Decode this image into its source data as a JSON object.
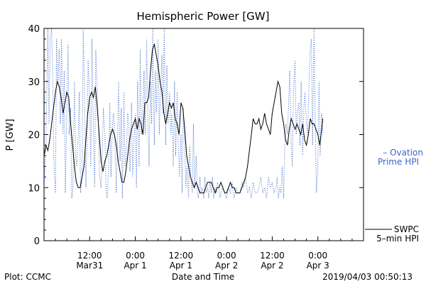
{
  "chart_data": {
    "type": "line",
    "title": "Hemispheric Power [GW]",
    "ylabel": "P [GW]",
    "xlabel": "Date and Time",
    "ylim": [
      0,
      40
    ],
    "yticks": [
      0,
      10,
      20,
      30,
      40
    ],
    "xlim_hours": [
      0,
      84
    ],
    "xticks": [
      {
        "hour": 12,
        "line1": "12:00",
        "line2": "Mar31"
      },
      {
        "hour": 24,
        "line1": "0:00",
        "line2": "Apr 1"
      },
      {
        "hour": 36,
        "line1": "12:00",
        "line2": "Apr 1"
      },
      {
        "hour": 48,
        "line1": "0:00",
        "line2": "Apr 2"
      },
      {
        "hour": 60,
        "line1": "12:00",
        "line2": "Apr 2"
      },
      {
        "hour": 72,
        "line1": "0:00",
        "line2": "Apr 3"
      }
    ],
    "series": [
      {
        "name": "Ovation Prime HPI",
        "legend_lines": [
          "– Ovation",
          "Prime HPI"
        ],
        "color": "#3a66c9",
        "style": "dotted",
        "x": [
          0,
          0.5,
          1,
          1.3,
          1.6,
          2,
          2.3,
          2.6,
          3,
          3.3,
          3.6,
          4,
          4.3,
          4.6,
          5,
          5.3,
          5.6,
          6,
          6.3,
          6.6,
          7,
          7.3,
          7.6,
          8,
          8.3,
          8.6,
          9,
          9.3,
          9.6,
          10,
          10.3,
          10.6,
          11,
          11.3,
          11.6,
          12,
          12.3,
          12.6,
          13,
          13.3,
          13.6,
          14,
          14.3,
          14.6,
          15,
          15.3,
          15.6,
          16,
          16.3,
          16.6,
          17,
          17.3,
          17.6,
          18,
          18.3,
          18.6,
          19,
          19.3,
          19.6,
          20,
          20.3,
          20.6,
          21,
          21.3,
          21.6,
          22,
          22.3,
          22.6,
          23,
          23.3,
          23.6,
          24,
          24.3,
          24.6,
          25,
          25.3,
          25.6,
          26,
          26.3,
          26.6,
          27,
          27.3,
          27.6,
          28,
          28.3,
          28.6,
          29,
          29.3,
          29.6,
          30,
          30.3,
          30.6,
          31,
          31.3,
          31.6,
          32,
          32.3,
          32.6,
          33,
          33.3,
          33.6,
          34,
          34.3,
          34.6,
          35,
          35.3,
          35.6,
          36,
          36.3,
          36.6,
          37,
          37.3,
          37.6,
          38,
          38.3,
          38.6,
          39,
          39.3,
          39.6,
          40,
          40.3,
          40.6,
          41,
          41.3,
          41.6,
          42,
          42.3,
          42.6,
          43,
          43.3,
          43.6,
          44,
          44.3,
          44.6,
          45,
          45.3,
          45.6,
          46,
          46.3,
          46.6,
          47,
          47.5,
          48,
          48.5,
          49,
          49.5,
          50,
          50.5,
          51,
          51.5,
          52,
          52.5,
          53,
          53.5,
          54,
          54.5,
          55,
          55.5,
          56,
          56.5,
          57,
          57.5,
          58,
          58.5,
          59,
          59.5,
          60,
          60.5,
          61,
          61.3,
          61.6,
          62,
          62.3,
          62.6,
          63,
          63.3,
          63.6,
          64,
          64.3,
          64.6,
          65,
          65.3,
          65.6,
          66,
          66.3,
          66.6,
          67,
          67.3,
          67.6,
          68,
          68.3,
          68.6,
          69,
          69.3,
          69.6,
          70,
          70.3,
          70.6,
          71,
          71.3,
          71.6,
          72,
          72.3,
          72.6,
          73,
          73.3
        ],
        "values": [
          10,
          18,
          40,
          22,
          38,
          40,
          30,
          15,
          9,
          38,
          30,
          36,
          22,
          38,
          20,
          32,
          9,
          25,
          37,
          20,
          25,
          8,
          10,
          30,
          16,
          14,
          20,
          28,
          9,
          12,
          40,
          30,
          10,
          18,
          34,
          27,
          14,
          38,
          20,
          10,
          36,
          28,
          22,
          12,
          10,
          16,
          25,
          20,
          10,
          8,
          14,
          26,
          12,
          22,
          24,
          20,
          9,
          18,
          30,
          15,
          25,
          8,
          28,
          14,
          16,
          24,
          22,
          13,
          26,
          12,
          18,
          24,
          10,
          30,
          14,
          36,
          20,
          25,
          32,
          20,
          38,
          22,
          14,
          30,
          22,
          40,
          18,
          32,
          24,
          38,
          20,
          28,
          35,
          24,
          40,
          18,
          33,
          22,
          28,
          20,
          24,
          14,
          30,
          16,
          28,
          18,
          12,
          20,
          9,
          25,
          18,
          10,
          14,
          8,
          18,
          12,
          9,
          22,
          10,
          16,
          9,
          8,
          12,
          9,
          10,
          8,
          12,
          9,
          10,
          8,
          11,
          9,
          12,
          8,
          10,
          9,
          11,
          10,
          8,
          9,
          10,
          9,
          8,
          10,
          9,
          11,
          8,
          10,
          9,
          9,
          11,
          10,
          12,
          9,
          10,
          8,
          11,
          9,
          9,
          10,
          12,
          9,
          10,
          8,
          12,
          10,
          11,
          9,
          10,
          12,
          8,
          10,
          9,
          14,
          8,
          18,
          22,
          20,
          26,
          32,
          18,
          14,
          28,
          34,
          20,
          24,
          26,
          18,
          30,
          16,
          25,
          28,
          22,
          20,
          28,
          36,
          38,
          18,
          40,
          22,
          9,
          14,
          30,
          16,
          24,
          20
        ],
        "clip_top": 40
      },
      {
        "name": "SWPC 5-min HPI",
        "legend_lines": [
          "SWPC",
          "5–min HPI"
        ],
        "color": "#000000",
        "style": "solid",
        "x": [
          0,
          0.5,
          1,
          1.5,
          2,
          2.5,
          3,
          3.5,
          4,
          4.5,
          5,
          5.5,
          6,
          6.5,
          7,
          7.5,
          8,
          8.5,
          9,
          9.5,
          10,
          10.5,
          11,
          11.5,
          12,
          12.5,
          13,
          13.5,
          14,
          14.5,
          15,
          15.5,
          16,
          16.5,
          17,
          17.5,
          18,
          18.5,
          19,
          19.5,
          20,
          20.5,
          21,
          21.5,
          22,
          22.5,
          23,
          23.5,
          24,
          24.5,
          25,
          25.5,
          26,
          26.5,
          27,
          27.5,
          28,
          28.5,
          29,
          29.5,
          30,
          30.5,
          31,
          31.5,
          32,
          32.5,
          33,
          33.5,
          34,
          34.5,
          35,
          35.5,
          36,
          36.5,
          37,
          37.5,
          38,
          38.5,
          39,
          39.5,
          40,
          40.5,
          41,
          41.5,
          42,
          42.5,
          43,
          43.5,
          44,
          44.5,
          45,
          45.5,
          46,
          46.5,
          47,
          47.5,
          48,
          48.5,
          49,
          49.5,
          50,
          50.5,
          51,
          51.5,
          52,
          52.5,
          53,
          53.5,
          54,
          54.5,
          55,
          55.5,
          56,
          56.5,
          57,
          57.5,
          58,
          58.5,
          59,
          59.5,
          60,
          60.5,
          61,
          61.5,
          62,
          62.5,
          63,
          63.5,
          64,
          64.5,
          65,
          65.5,
          66,
          66.5,
          67,
          67.5,
          68,
          68.5,
          69,
          69.5,
          70,
          70.5,
          71,
          71.5,
          72,
          72.5,
          73,
          73.3
        ],
        "values": [
          16,
          18,
          17,
          19,
          22,
          25,
          28,
          30,
          29,
          27,
          24,
          26,
          28,
          27,
          22,
          18,
          14,
          11,
          10,
          10,
          12,
          14,
          19,
          24,
          27,
          28,
          27,
          29,
          25,
          20,
          15,
          13,
          15,
          16,
          18,
          20,
          21,
          20,
          18,
          15,
          13,
          11,
          11,
          13,
          16,
          19,
          21,
          22,
          23,
          21,
          23,
          22,
          20,
          26,
          26,
          27,
          32,
          36,
          37,
          35,
          33,
          30,
          28,
          24,
          22,
          24,
          26,
          25,
          26,
          23,
          22,
          20,
          26,
          25,
          21,
          16,
          14,
          12,
          11,
          10,
          11,
          10,
          9,
          9,
          9,
          10,
          11,
          11,
          11,
          10,
          9,
          10,
          10,
          11,
          10,
          9,
          9,
          10,
          11,
          10,
          10,
          9,
          9,
          9,
          10,
          11,
          12,
          14,
          17,
          20,
          23,
          22,
          22,
          23,
          21,
          22,
          24,
          22,
          21,
          20,
          24,
          26,
          28,
          30,
          29,
          24,
          22,
          19,
          18,
          21,
          23,
          22,
          21,
          22,
          21,
          20,
          22,
          19,
          18,
          20,
          23,
          22,
          22,
          21,
          20,
          18,
          21,
          23
        ],
        "clip_top": 40
      }
    ]
  },
  "footer": {
    "left": "Plot: CCMC",
    "right": "2019/04/03 00:50:13"
  }
}
